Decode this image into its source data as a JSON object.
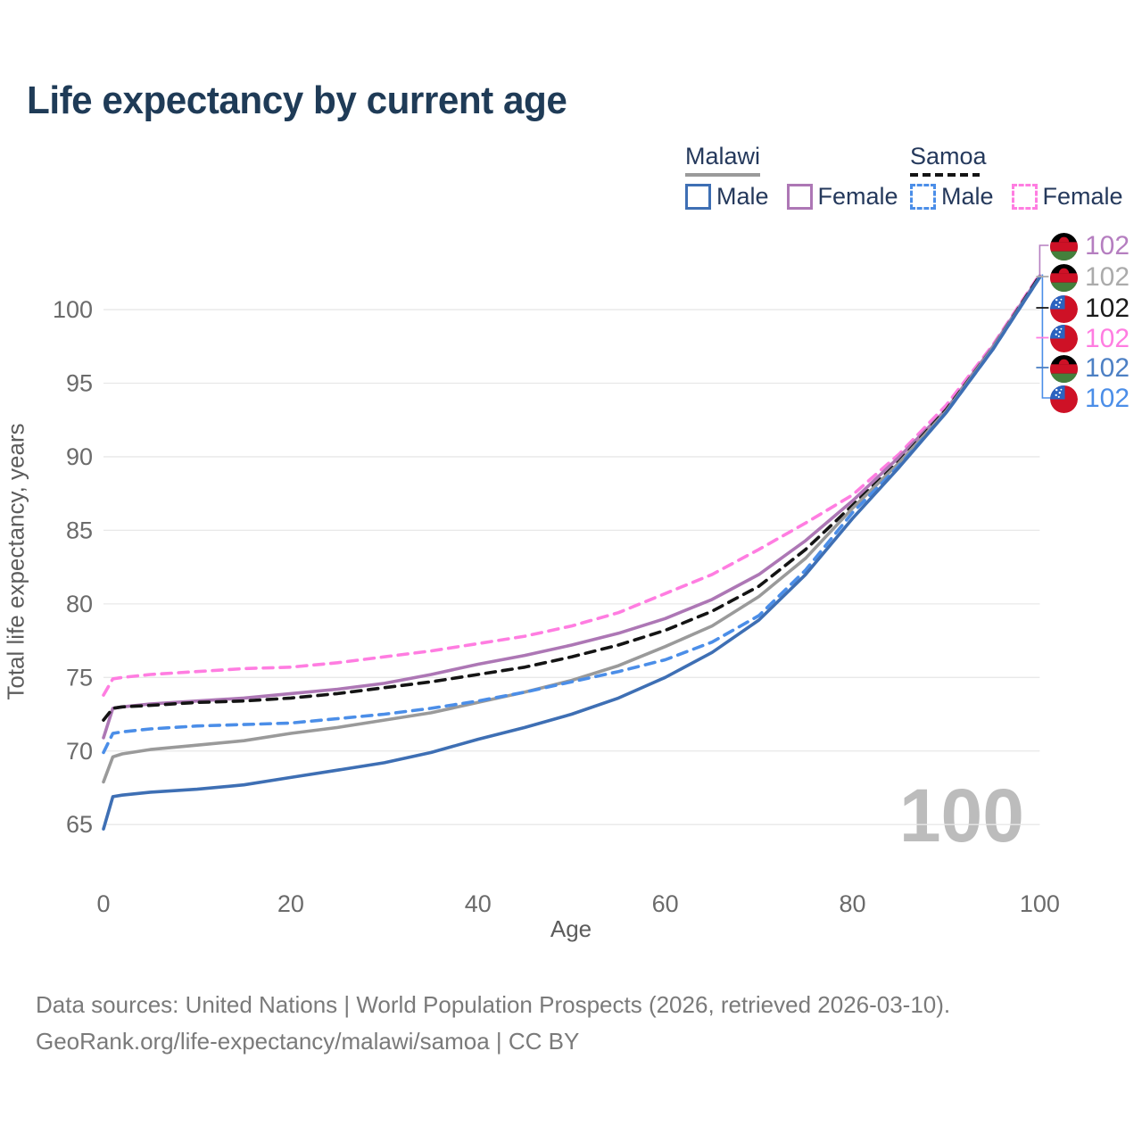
{
  "title": "Life expectancy by current age",
  "watermark": "100",
  "legend": {
    "groups": [
      {
        "country": "Malawi",
        "style": "solid",
        "underline_color": "#9a9a9a",
        "items": [
          {
            "label": "Male",
            "color": "#3e6fb4"
          },
          {
            "label": "Female",
            "color": "#ad77b5"
          }
        ]
      },
      {
        "country": "Samoa",
        "style": "dashed",
        "underline_color": "#141414",
        "items": [
          {
            "label": "Male",
            "color": "#4b8ee8"
          },
          {
            "label": "Female",
            "color": "#ff7de1"
          }
        ]
      }
    ]
  },
  "chart_data": {
    "type": "line",
    "title": "Life expectancy by current age",
    "xlabel": "Age",
    "ylabel": "Total life expectancy, years",
    "xlim": [
      0,
      100
    ],
    "ylim": [
      65,
      102.5
    ],
    "xticks": [
      0,
      20,
      40,
      60,
      80,
      100
    ],
    "yticks": [
      65,
      70,
      75,
      80,
      85,
      90,
      95,
      100
    ],
    "grid": "horizontal-only",
    "legend_position": "top-right",
    "x": [
      0,
      1,
      2,
      5,
      10,
      15,
      20,
      25,
      30,
      35,
      40,
      45,
      50,
      55,
      60,
      65,
      70,
      75,
      80,
      85,
      90,
      95,
      100
    ],
    "series": [
      {
        "name": "Samoa Female",
        "country": "Samoa",
        "sex": "Female",
        "color": "#ff7de1",
        "dashed": true,
        "values": [
          73.8,
          74.9,
          75.0,
          75.2,
          75.4,
          75.6,
          75.7,
          76.0,
          76.4,
          76.8,
          77.3,
          77.8,
          78.5,
          79.4,
          80.7,
          82.0,
          83.7,
          85.5,
          87.4,
          90.2,
          93.5,
          97.6,
          102.4
        ]
      },
      {
        "name": "Malawi Female",
        "country": "Malawi",
        "sex": "Female",
        "color": "#ad77b5",
        "dashed": false,
        "values": [
          70.9,
          72.9,
          73.0,
          73.2,
          73.4,
          73.6,
          73.9,
          74.2,
          74.6,
          75.2,
          75.9,
          76.5,
          77.2,
          78.0,
          79.0,
          80.3,
          82.0,
          84.3,
          87.0,
          90.0,
          93.2,
          97.5,
          102.3
        ]
      },
      {
        "name": "Samoa Both sexes",
        "country": "Samoa",
        "sex": "Both",
        "color": "#141414",
        "dashed": true,
        "values": [
          72.1,
          72.9,
          73.0,
          73.1,
          73.3,
          73.4,
          73.6,
          73.9,
          74.3,
          74.7,
          75.2,
          75.7,
          76.4,
          77.2,
          78.2,
          79.5,
          81.2,
          83.7,
          86.7,
          89.7,
          93.2,
          97.4,
          102.3
        ]
      },
      {
        "name": "Malawi Both sexes",
        "country": "Malawi",
        "sex": "Both",
        "color": "#9a9a9a",
        "dashed": false,
        "values": [
          67.9,
          69.6,
          69.8,
          70.1,
          70.4,
          70.7,
          71.2,
          71.6,
          72.1,
          72.6,
          73.3,
          74.0,
          74.8,
          75.8,
          77.1,
          78.5,
          80.5,
          83.1,
          86.5,
          89.6,
          93.1,
          97.4,
          102.2
        ]
      },
      {
        "name": "Samoa Male",
        "country": "Samoa",
        "sex": "Male",
        "color": "#4b8ee8",
        "dashed": true,
        "values": [
          69.9,
          71.2,
          71.3,
          71.5,
          71.7,
          71.8,
          71.9,
          72.2,
          72.5,
          72.9,
          73.4,
          74.0,
          74.7,
          75.4,
          76.2,
          77.4,
          79.2,
          82.3,
          86.2,
          89.4,
          93.0,
          97.3,
          102.2
        ]
      },
      {
        "name": "Malawi Male",
        "country": "Malawi",
        "sex": "Male",
        "color": "#3e6fb4",
        "dashed": false,
        "values": [
          64.7,
          66.9,
          67.0,
          67.2,
          67.4,
          67.7,
          68.2,
          68.7,
          69.2,
          69.9,
          70.8,
          71.6,
          72.5,
          73.6,
          75.0,
          76.7,
          78.9,
          82.0,
          85.8,
          89.3,
          93.0,
          97.3,
          102.2
        ]
      }
    ]
  },
  "end_labels": [
    {
      "flag": "malawi",
      "series": "Malawi Female",
      "value": "102",
      "color": "#b57ec0"
    },
    {
      "flag": "malawi",
      "series": "Malawi Both sexes",
      "value": "102",
      "color": "#ababab"
    },
    {
      "flag": "samoa",
      "series": "Samoa Both sexes",
      "value": "102",
      "color": "#1a1a1a"
    },
    {
      "flag": "samoa",
      "series": "Samoa Female",
      "value": "102",
      "color": "#ff7de1"
    },
    {
      "flag": "malawi",
      "series": "Malawi Male",
      "value": "102",
      "color": "#4d80c4"
    },
    {
      "flag": "samoa",
      "series": "Samoa Male",
      "value": "102",
      "color": "#4b8ee8"
    }
  ],
  "footer": {
    "line1": "Data sources: United Nations | World Population Prospects (2026, retrieved 2026-03-10).",
    "line2": "GeoRank.org/life-expectancy/malawi/samoa | CC BY"
  }
}
